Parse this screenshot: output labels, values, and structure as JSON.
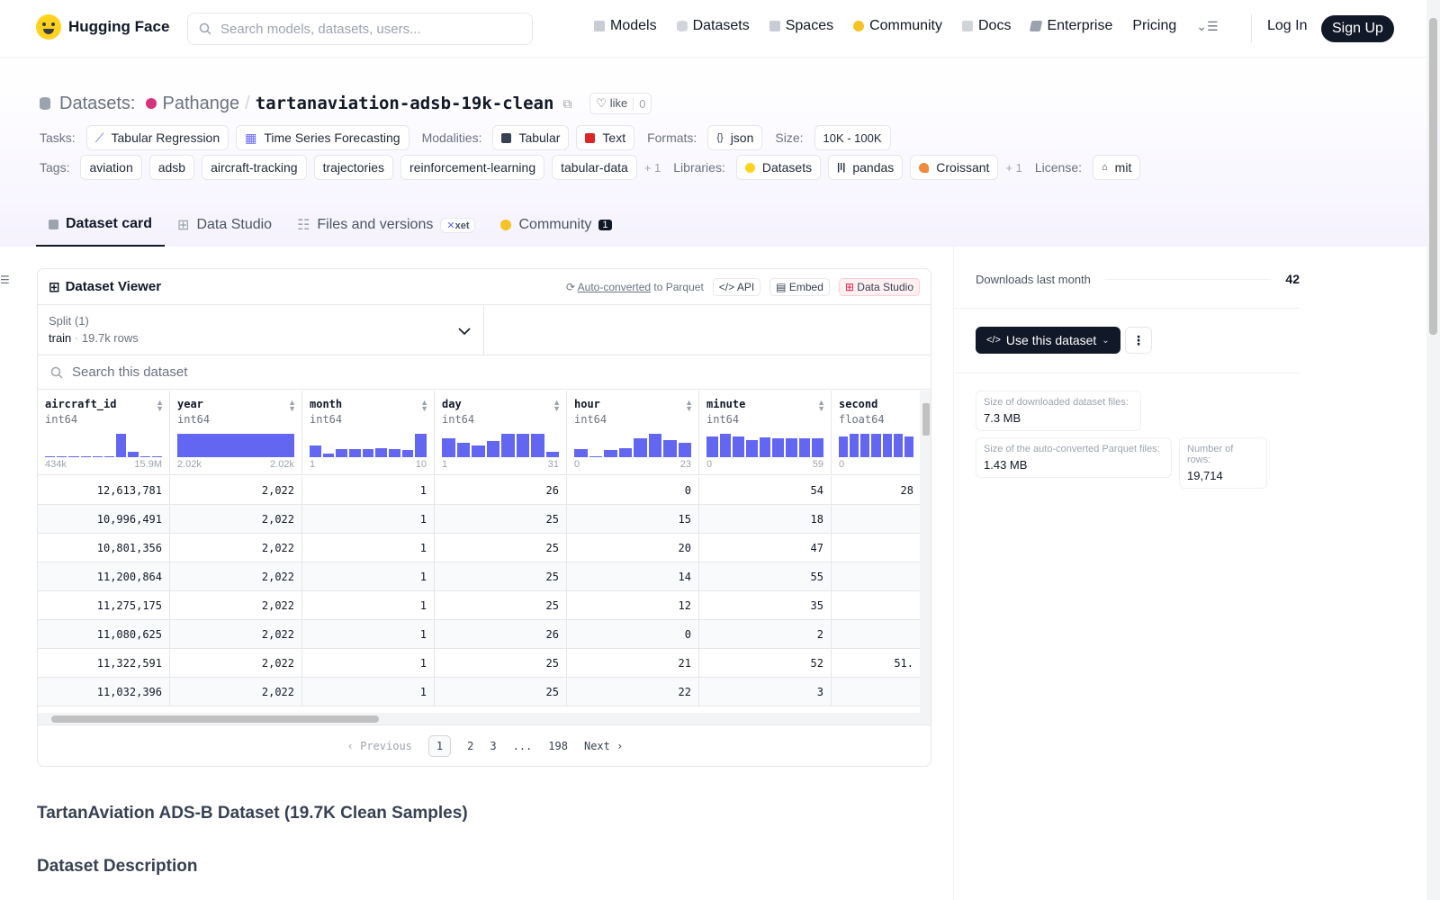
{
  "nav": {
    "brand": "Hugging Face",
    "search_placeholder": "Search models, datasets, users...",
    "links": [
      {
        "label": "Models",
        "icon": "cube-icon",
        "color": "#9ca3af"
      },
      {
        "label": "Datasets",
        "icon": "database-icon",
        "color": "#9ca3af"
      },
      {
        "label": "Spaces",
        "icon": "grid-icon",
        "color": "#9ca3af"
      },
      {
        "label": "Community",
        "icon": "community-icon",
        "color": "#f6c325"
      },
      {
        "label": "Docs",
        "icon": "book-icon",
        "color": "#9ca3af"
      },
      {
        "label": "Enterprise",
        "icon": "enterprise-icon",
        "color": "#6b7280"
      },
      {
        "label": "Pricing",
        "icon": "",
        "color": ""
      }
    ],
    "login": "Log In",
    "signup": "Sign Up"
  },
  "header": {
    "section": "Datasets:",
    "owner": "Pathange",
    "sep": "/",
    "repo": "tartanaviation-adsb-19k-clean",
    "like_label": "like",
    "like_count": "0"
  },
  "tasks": {
    "label": "Tasks:",
    "items": [
      "Tabular Regression",
      "Time Series Forecasting"
    ]
  },
  "modalities": {
    "label": "Modalities:",
    "items": [
      "Tabular",
      "Text"
    ]
  },
  "formats": {
    "label": "Formats:",
    "items": [
      "json"
    ]
  },
  "size": {
    "label": "Size:",
    "value": "10K - 100K"
  },
  "tags": {
    "label": "Tags:",
    "items": [
      "aviation",
      "adsb",
      "aircraft-tracking",
      "trajectories",
      "reinforcement-learning",
      "tabular-data"
    ],
    "more": "+ 1"
  },
  "libraries": {
    "label": "Libraries:",
    "items": [
      "Datasets",
      "pandas",
      "Croissant"
    ],
    "more": "+ 1"
  },
  "license": {
    "label": "License:",
    "value": "mit"
  },
  "tabs": [
    {
      "label": "Dataset card",
      "active": true
    },
    {
      "label": "Data Studio"
    },
    {
      "label": "Files and versions",
      "badge": "xet"
    },
    {
      "label": "Community",
      "badge": "1"
    }
  ],
  "viewer": {
    "title": "Dataset Viewer",
    "auto_converted": "Auto-converted",
    "to_parquet": "to Parquet",
    "api": "API",
    "embed": "Embed",
    "data_studio": "Data Studio",
    "split_label": "Split (1)",
    "split_value": "train",
    "split_rows": "19.7k rows",
    "search_placeholder": "Search this dataset",
    "columns": [
      {
        "name": "aircraft_id",
        "type": "int64",
        "min": "434k",
        "max": "15.9M",
        "hist": [
          0.04,
          0.04,
          0.04,
          0.04,
          0.04,
          0.04,
          1,
          0.25,
          0.04,
          0.04
        ]
      },
      {
        "name": "year",
        "type": "int64",
        "min": "2.02k",
        "max": "2.02k",
        "hist": [
          1
        ]
      },
      {
        "name": "month",
        "type": "int64",
        "min": "1",
        "max": "10",
        "hist": [
          0.5,
          0.15,
          0.35,
          0.35,
          0.35,
          0.4,
          0.35,
          0.3,
          1
        ]
      },
      {
        "name": "day",
        "type": "int64",
        "min": "1",
        "max": "31",
        "hist": [
          0.8,
          0.6,
          0.5,
          0.7,
          1,
          1,
          1,
          0.25
        ]
      },
      {
        "name": "hour",
        "type": "int64",
        "min": "0",
        "max": "23",
        "hist": [
          0.35,
          0.05,
          0.3,
          0.4,
          0.8,
          1,
          0.75,
          0.6
        ]
      },
      {
        "name": "minute",
        "type": "int64",
        "min": "0",
        "max": "59",
        "hist": [
          0.9,
          1,
          0.9,
          0.75,
          0.85,
          0.8,
          0.8,
          0.8,
          0.8
        ]
      },
      {
        "name": "second",
        "type": "float64",
        "min": "0",
        "max": "",
        "hist": [
          0.9,
          1,
          1,
          1,
          1,
          1,
          0.9
        ]
      }
    ],
    "rows": [
      [
        "12,613,781",
        "2,022",
        "1",
        "26",
        "0",
        "54",
        "28"
      ],
      [
        "10,996,491",
        "2,022",
        "1",
        "25",
        "15",
        "18",
        ""
      ],
      [
        "10,801,356",
        "2,022",
        "1",
        "25",
        "20",
        "47",
        ""
      ],
      [
        "11,200,864",
        "2,022",
        "1",
        "25",
        "14",
        "55",
        ""
      ],
      [
        "11,275,175",
        "2,022",
        "1",
        "25",
        "12",
        "35",
        ""
      ],
      [
        "11,080,625",
        "2,022",
        "1",
        "26",
        "0",
        "2",
        ""
      ],
      [
        "11,322,591",
        "2,022",
        "1",
        "25",
        "21",
        "52",
        "51."
      ],
      [
        "11,032,396",
        "2,022",
        "1",
        "25",
        "22",
        "3",
        ""
      ]
    ],
    "pager": {
      "prev": "Previous",
      "pages": [
        "1",
        "2",
        "3",
        "...",
        "198"
      ],
      "next": "Next"
    }
  },
  "sidebar": {
    "downloads_label": "Downloads last month",
    "downloads_value": "42",
    "use_button": "Use this dataset",
    "stats": [
      {
        "label": "Size of downloaded dataset files:",
        "value": "7.3 MB"
      },
      {
        "label": "Size of the auto-converted Parquet files:",
        "value": "1.43 MB"
      },
      {
        "label": "Number of rows:",
        "value": "19,714"
      }
    ]
  },
  "readme": {
    "title": "TartanAviation ADS-B Dataset (19.7K Clean Samples)",
    "section": "Dataset Description"
  },
  "colors": {
    "brand_yellow": "#ffd21e",
    "accent": "#6366f1",
    "dark": "#111827"
  }
}
